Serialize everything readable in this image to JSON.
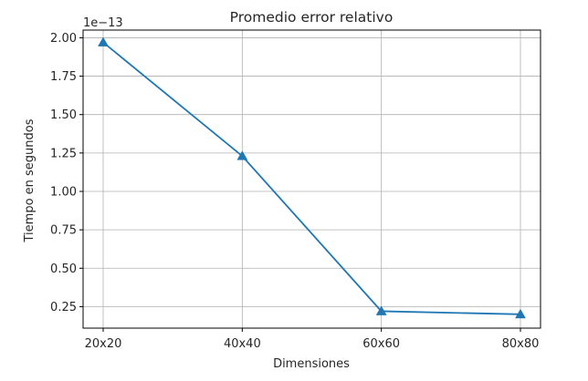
{
  "chart_data": {
    "type": "line",
    "title": "Promedio error relativo",
    "xlabel": "Dimensiones",
    "ylabel": "Tiempo en segundos",
    "y_offset_label": "1e−13",
    "y_scale_exponent": -13,
    "categories": [
      "20x20",
      "40x40",
      "60x60",
      "80x80"
    ],
    "series": [
      {
        "values": [
          1.97e-13,
          1.23e-13,
          2.2e-14,
          2e-14
        ],
        "color": "#1f77b4",
        "marker": "triangle-up"
      }
    ],
    "yticks": [
      0.25,
      0.5,
      0.75,
      1.0,
      1.25,
      1.5,
      1.75,
      2.0
    ],
    "ytick_labels": [
      "0.25",
      "0.50",
      "0.75",
      "1.00",
      "1.25",
      "1.50",
      "1.75",
      "2.00"
    ],
    "ylim": [
      0.11,
      2.05
    ],
    "grid": true,
    "grid_color": "#b0b0b0"
  }
}
